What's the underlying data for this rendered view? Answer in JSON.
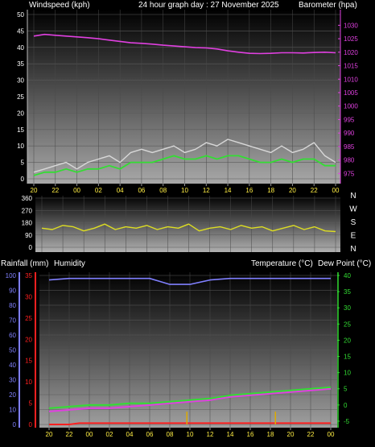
{
  "header": {
    "left_title": "Windspeed (kph)",
    "center_title": "24 hour graph day : 27 November 2025",
    "right_title": "Barometer (hpa)"
  },
  "lower_header": {
    "rainfall": "Rainfall (mm)",
    "humidity": "Humidity",
    "temperature": "Temperature (°C)",
    "dewpoint": "Dew Point (°C)"
  },
  "colors": {
    "background": "#000000",
    "wind_speed": "#d8d8d8",
    "wind_avg": "#33dd33",
    "barometer": "#e040e0",
    "wind_direction": "#dddd22",
    "humidity": "#8080ff",
    "temperature": "#33dd33",
    "dew_point": "#e040e0",
    "rainfall": "#ff2020",
    "rain_rate": "#ddaa00"
  },
  "chart_data": [
    {
      "type": "line",
      "x_tick_labels": [
        "20",
        "22",
        "00",
        "02",
        "04",
        "06",
        "08",
        "10",
        "12",
        "14",
        "16",
        "18",
        "20",
        "22",
        "00"
      ],
      "xlim": [
        0,
        28
      ],
      "left_axis": {
        "title": "Windspeed (kph)",
        "ylim": [
          0,
          50
        ],
        "ticks": [
          0,
          5,
          10,
          15,
          20,
          25,
          30,
          35,
          40,
          45,
          50
        ]
      },
      "right_axis": {
        "title": "Barometer (hpa)",
        "ylim": [
          973,
          1034
        ],
        "ticks": [
          975,
          980,
          985,
          990,
          995,
          1000,
          1005,
          1010,
          1015,
          1020,
          1025,
          1030
        ]
      },
      "series": [
        {
          "axis": "right",
          "x": [
            0,
            1,
            2,
            3,
            4,
            5,
            6,
            7,
            8,
            9,
            10,
            11,
            12,
            13,
            14,
            15,
            16,
            17,
            18,
            19,
            20,
            21,
            22,
            23,
            24,
            25,
            26,
            27,
            28
          ],
          "values": [
            1026,
            1026.6,
            1026.3,
            1026,
            1025.7,
            1025.4,
            1025,
            1024.5,
            1024,
            1023.5,
            1023.3,
            1023,
            1022.6,
            1022.3,
            1022,
            1021.7,
            1021.6,
            1021.2,
            1020.5,
            1020,
            1019.6,
            1019.5,
            1019.6,
            1019.8,
            1019.8,
            1019.7,
            1019.9,
            1020,
            1019.8
          ]
        },
        {
          "axis": "left",
          "x": [
            0,
            1,
            2,
            3,
            4,
            5,
            6,
            7,
            8,
            9,
            10,
            11,
            12,
            13,
            14,
            15,
            16,
            17,
            18,
            19,
            20,
            21,
            22,
            23,
            24,
            25,
            26,
            27,
            28
          ],
          "values": [
            2,
            3,
            4,
            5,
            3,
            5,
            6,
            7,
            5,
            8,
            9,
            8,
            9,
            10,
            8,
            9,
            11,
            10,
            12,
            11,
            10,
            9,
            8,
            10,
            8,
            9,
            11,
            7,
            5
          ]
        },
        {
          "axis": "left",
          "x": [
            0,
            1,
            2,
            3,
            4,
            5,
            6,
            7,
            8,
            9,
            10,
            11,
            12,
            13,
            14,
            15,
            16,
            17,
            18,
            19,
            20,
            21,
            22,
            23,
            24,
            25,
            26,
            27,
            28
          ],
          "values": [
            1,
            2,
            2,
            3,
            2,
            3,
            3,
            4,
            3,
            5,
            5,
            5,
            6,
            7,
            6,
            6,
            7,
            6,
            7,
            7,
            6,
            5,
            5,
            6,
            5,
            6,
            6,
            4,
            4
          ]
        }
      ]
    },
    {
      "type": "line",
      "x_tick_labels": [
        "20",
        "22",
        "00",
        "02",
        "04",
        "06",
        "08",
        "10",
        "12",
        "14",
        "16",
        "18",
        "20",
        "22",
        "00"
      ],
      "xlim": [
        0,
        28
      ],
      "left_axis": {
        "ylim": [
          0,
          360
        ],
        "ticks": [
          0,
          90,
          180,
          270,
          360
        ]
      },
      "right_axis": {
        "ticks": [
          "N",
          "W",
          "S",
          "E",
          "N"
        ]
      },
      "series": [
        {
          "x": [
            0,
            1,
            2,
            3,
            4,
            5,
            6,
            7,
            8,
            9,
            10,
            11,
            12,
            13,
            14,
            15,
            16,
            17,
            18,
            19,
            20,
            21,
            22,
            23,
            24,
            25,
            26,
            27,
            28
          ],
          "values": [
            140,
            130,
            160,
            150,
            120,
            140,
            170,
            130,
            150,
            140,
            160,
            130,
            150,
            140,
            170,
            120,
            140,
            150,
            130,
            160,
            140,
            150,
            120,
            140,
            160,
            130,
            150,
            120,
            115
          ]
        }
      ]
    },
    {
      "type": "line",
      "x_tick_labels": [
        "20",
        "22",
        "00",
        "02",
        "04",
        "06",
        "08",
        "10",
        "12",
        "14",
        "16",
        "18",
        "20",
        "22",
        "00"
      ],
      "xlim": [
        0,
        28
      ],
      "axes": [
        {
          "title": "Humidity",
          "ylim": [
            0,
            100
          ],
          "ticks": [
            0,
            10,
            20,
            30,
            40,
            50,
            60,
            70,
            80,
            90,
            100
          ]
        },
        {
          "title": "Rainfall (mm)",
          "ylim": [
            0,
            35
          ],
          "ticks": [
            0,
            5,
            10,
            15,
            20,
            25,
            30,
            35
          ]
        },
        {
          "title": "Temperature (°C)",
          "ylim": [
            -7,
            40
          ],
          "ticks": [
            -5,
            0,
            5,
            10,
            15,
            20,
            25,
            30,
            35,
            40
          ]
        }
      ],
      "series": [
        {
          "axis": "humidity",
          "x": [
            0,
            2,
            4,
            6,
            8,
            10,
            11,
            12,
            14,
            16,
            18,
            20,
            22,
            24,
            26,
            28
          ],
          "values": [
            97,
            98,
            98,
            98,
            98,
            98,
            96,
            94,
            94,
            97,
            98,
            98,
            98,
            98,
            98,
            98
          ]
        },
        {
          "axis": "temperature",
          "x": [
            0,
            2,
            4,
            6,
            8,
            10,
            12,
            14,
            16,
            18,
            20,
            22,
            24,
            26,
            28
          ],
          "values": [
            -1,
            -0.5,
            0,
            0,
            0.5,
            0.5,
            1,
            1.5,
            2,
            3,
            3.5,
            4,
            4.5,
            5,
            5.5
          ]
        },
        {
          "axis": "temperature",
          "x": [
            0,
            2,
            4,
            6,
            8,
            10,
            12,
            14,
            16,
            18,
            20,
            22,
            24,
            26,
            28
          ],
          "values": [
            -2,
            -1.5,
            -1,
            -1,
            -0.5,
            0,
            0.5,
            1,
            1.5,
            2.5,
            3,
            3.5,
            4,
            4.5,
            5
          ]
        },
        {
          "axis": "rainfall",
          "x": [
            0,
            2,
            3,
            4,
            6,
            8,
            10,
            12,
            14,
            16,
            18,
            20,
            22,
            24,
            26,
            28
          ],
          "values": [
            0,
            0,
            0.3,
            0.3,
            0.3,
            0.3,
            0.3,
            0.3,
            0.3,
            0.3,
            0.3,
            0.3,
            0.3,
            0.3,
            0.3,
            0.3
          ]
        },
        {
          "axis": "rainfall",
          "type": "bar",
          "x": [
            13.7,
            22.5
          ],
          "values": [
            3,
            3
          ]
        }
      ]
    }
  ]
}
